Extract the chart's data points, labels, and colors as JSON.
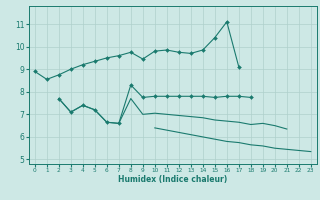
{
  "xlabel": "Humidex (Indice chaleur)",
  "background_color": "#cde8e5",
  "grid_color": "#afd0cc",
  "line_color": "#1a7a6e",
  "xlim": [
    -0.5,
    23.5
  ],
  "ylim": [
    4.8,
    11.8
  ],
  "yticks": [
    5,
    6,
    7,
    8,
    9,
    10,
    11
  ],
  "xticks": [
    0,
    1,
    2,
    3,
    4,
    5,
    6,
    7,
    8,
    9,
    10,
    11,
    12,
    13,
    14,
    15,
    16,
    17,
    18,
    19,
    20,
    21,
    22,
    23
  ],
  "lines": [
    {
      "x": [
        0,
        1,
        2,
        3,
        4,
        5,
        6,
        7,
        8,
        9,
        10,
        11,
        12,
        13,
        14,
        15,
        16,
        17
      ],
      "y": [
        8.9,
        8.55,
        8.75,
        9.0,
        9.2,
        9.35,
        9.5,
        9.6,
        9.75,
        9.45,
        9.8,
        9.85,
        9.75,
        9.7,
        9.85,
        10.4,
        11.1,
        9.1
      ],
      "marker": true
    },
    {
      "x": [
        2,
        3,
        4,
        5,
        6,
        7,
        8,
        9,
        10,
        11,
        12,
        13,
        14,
        15,
        16,
        17,
        18
      ],
      "y": [
        7.7,
        7.1,
        7.4,
        7.2,
        6.65,
        6.6,
        8.3,
        7.75,
        7.8,
        7.8,
        7.8,
        7.8,
        7.8,
        7.75,
        7.8,
        7.8,
        7.75
      ],
      "marker": true
    },
    {
      "x": [
        2,
        3,
        4,
        5,
        6,
        7,
        8,
        9,
        10,
        11,
        12,
        13,
        14,
        15,
        16,
        17,
        18,
        19,
        20,
        21
      ],
      "y": [
        7.7,
        7.1,
        7.4,
        7.2,
        6.65,
        6.6,
        7.7,
        7.0,
        7.05,
        7.0,
        6.95,
        6.9,
        6.85,
        6.75,
        6.7,
        6.65,
        6.55,
        6.6,
        6.5,
        6.35
      ],
      "marker": false
    },
    {
      "x": [
        10,
        11,
        12,
        13,
        14,
        15,
        16,
        17,
        18,
        19,
        20,
        21,
        22,
        23
      ],
      "y": [
        6.4,
        6.3,
        6.2,
        6.1,
        6.0,
        5.9,
        5.8,
        5.75,
        5.65,
        5.6,
        5.5,
        5.45,
        5.4,
        5.35
      ],
      "marker": false
    }
  ]
}
